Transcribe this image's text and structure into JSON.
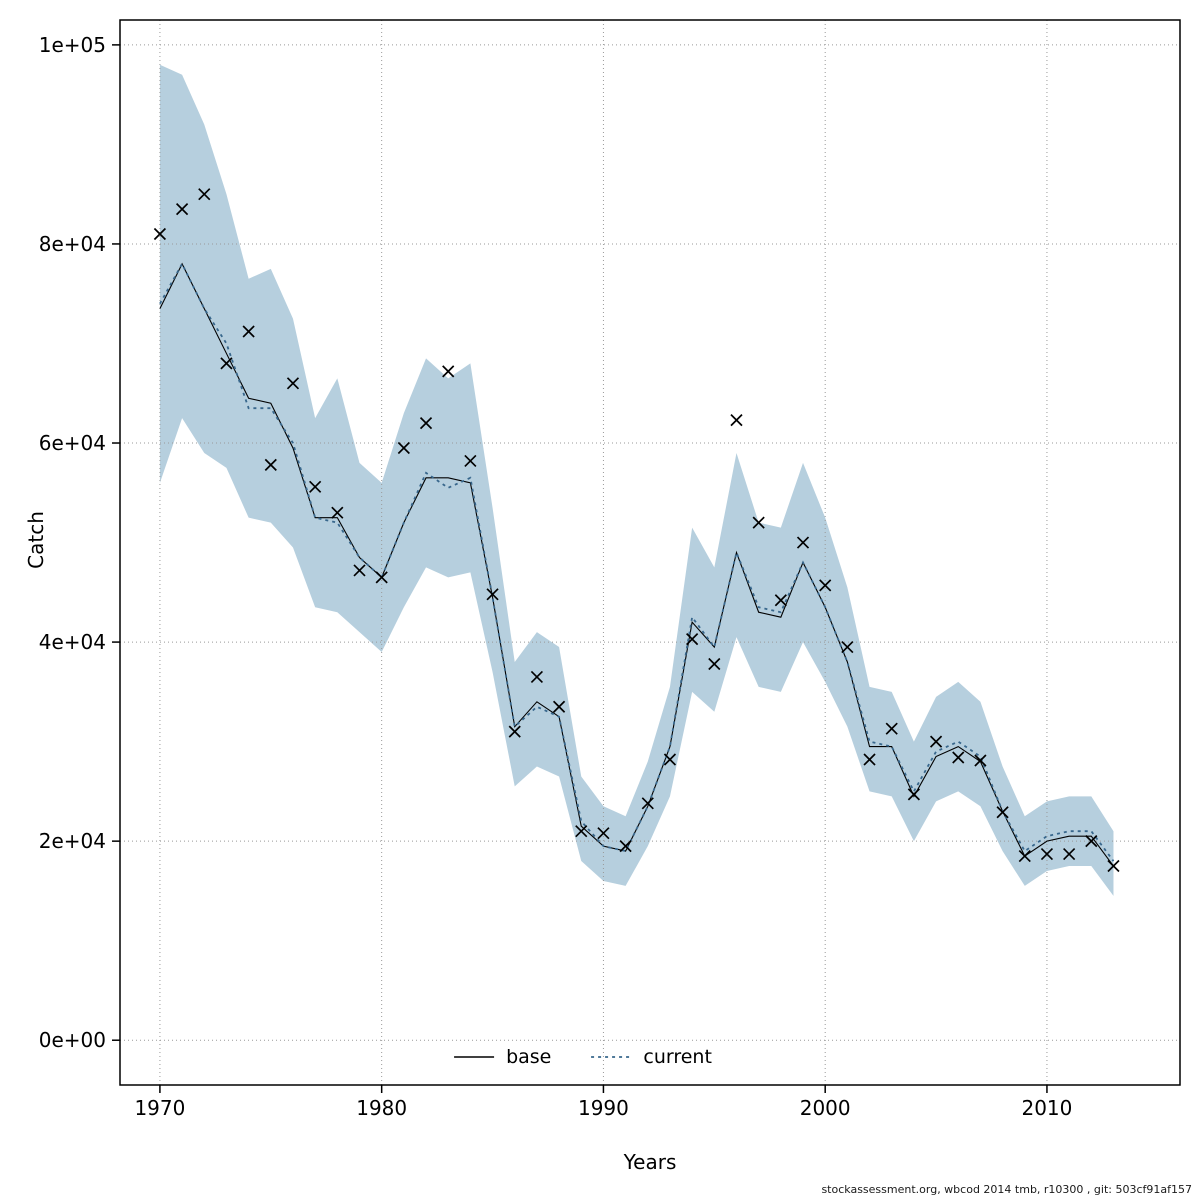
{
  "figure": {
    "ylabel": "Catch",
    "xlabel": "Years",
    "footer": "stockassessment.org, wbcod 2014 tmb, r10300 , git: 503cf91af157"
  },
  "legend": {
    "base_label": "base",
    "current_label": "current"
  },
  "colors": {
    "band": "#b6cfde",
    "current_line": "#38678c",
    "base_line": "#000000",
    "grid": "#999999",
    "marker": "#000000",
    "axis": "#000000"
  },
  "chart_data": {
    "type": "line",
    "title": "",
    "xlabel": "Years",
    "ylabel": "Catch",
    "grid": true,
    "legend_position": "bottom-center-inside",
    "x_ticks": [
      1970,
      1980,
      1990,
      2000,
      2010
    ],
    "y_ticks": [
      0,
      20000,
      40000,
      60000,
      80000,
      100000
    ],
    "y_tick_labels": [
      "0e+00",
      "2e+04",
      "4e+04",
      "6e+04",
      "8e+04",
      "1e+05"
    ],
    "xlim": [
      1968.2,
      2016
    ],
    "ylim": [
      -4500,
      102500
    ],
    "years": [
      1970,
      1971,
      1972,
      1973,
      1974,
      1975,
      1976,
      1977,
      1978,
      1979,
      1980,
      1981,
      1982,
      1983,
      1984,
      1985,
      1986,
      1987,
      1988,
      1989,
      1990,
      1991,
      1992,
      1993,
      1994,
      1995,
      1996,
      1997,
      1998,
      1999,
      2000,
      2001,
      2002,
      2003,
      2004,
      2005,
      2006,
      2007,
      2008,
      2009,
      2010,
      2011,
      2012,
      2013
    ],
    "series": [
      {
        "name": "base",
        "style": "solid",
        "color": "#000000",
        "values": [
          73500,
          78000,
          73500,
          69000,
          64500,
          64000,
          59500,
          52500,
          52500,
          48500,
          46500,
          52000,
          56500,
          56500,
          56000,
          44500,
          31500,
          34000,
          32500,
          21500,
          19500,
          19000,
          23500,
          29500,
          42000,
          39500,
          49000,
          43000,
          42500,
          48000,
          43500,
          38000,
          29500,
          29500,
          24500,
          28500,
          29500,
          28000,
          23000,
          18500,
          20000,
          20500,
          20500,
          17500
        ]
      },
      {
        "name": "current",
        "style": "dotted",
        "color": "#38678c",
        "values": [
          74000,
          78000,
          73500,
          70000,
          63500,
          63500,
          60000,
          52500,
          52000,
          48500,
          46500,
          52000,
          57000,
          55500,
          56500,
          44500,
          31500,
          33500,
          32500,
          22000,
          19500,
          19000,
          23500,
          29500,
          42500,
          39500,
          49000,
          43500,
          43000,
          48000,
          43500,
          38000,
          30000,
          29500,
          25000,
          29000,
          30000,
          28500,
          23000,
          19000,
          20500,
          21000,
          21000,
          18000
        ]
      },
      {
        "name": "observed_catch",
        "style": "x-markers",
        "color": "#000000",
        "values": [
          81000,
          83500,
          85000,
          68000,
          71200,
          57800,
          66000,
          55600,
          53000,
          47200,
          46500,
          59500,
          62000,
          67200,
          58200,
          44800,
          31000,
          36500,
          33500,
          21000,
          20800,
          19500,
          23800,
          28200,
          40300,
          37800,
          62300,
          52000,
          44200,
          50000,
          45700,
          39500,
          28200,
          31300,
          24700,
          30000,
          28400,
          28100,
          22900,
          18500,
          18700,
          18700,
          20000,
          17500
        ]
      },
      {
        "name": "ci_upper",
        "style": "band-upper",
        "color": "#b6cfde",
        "values": [
          98000,
          97000,
          92000,
          85000,
          76500,
          77500,
          72500,
          62500,
          66500,
          58000,
          56000,
          63000,
          68500,
          66500,
          68000,
          53500,
          38000,
          41000,
          39500,
          26500,
          23500,
          22500,
          28000,
          35500,
          51500,
          47500,
          59000,
          52000,
          51500,
          58000,
          52500,
          45500,
          35500,
          35000,
          30000,
          34500,
          36000,
          34000,
          27500,
          22500,
          24000,
          24500,
          24500,
          21000
        ]
      },
      {
        "name": "ci_lower",
        "style": "band-lower",
        "color": "#b6cfde",
        "values": [
          56000,
          62500,
          59000,
          57500,
          52500,
          52000,
          49500,
          43500,
          43000,
          41000,
          39000,
          43500,
          47500,
          46500,
          47000,
          37000,
          25500,
          27500,
          26500,
          18000,
          16000,
          15500,
          19500,
          24500,
          35000,
          33000,
          40500,
          35500,
          35000,
          40000,
          36000,
          31500,
          25000,
          24500,
          20000,
          24000,
          25000,
          23500,
          19000,
          15500,
          17000,
          17500,
          17500,
          14500
        ]
      }
    ]
  }
}
